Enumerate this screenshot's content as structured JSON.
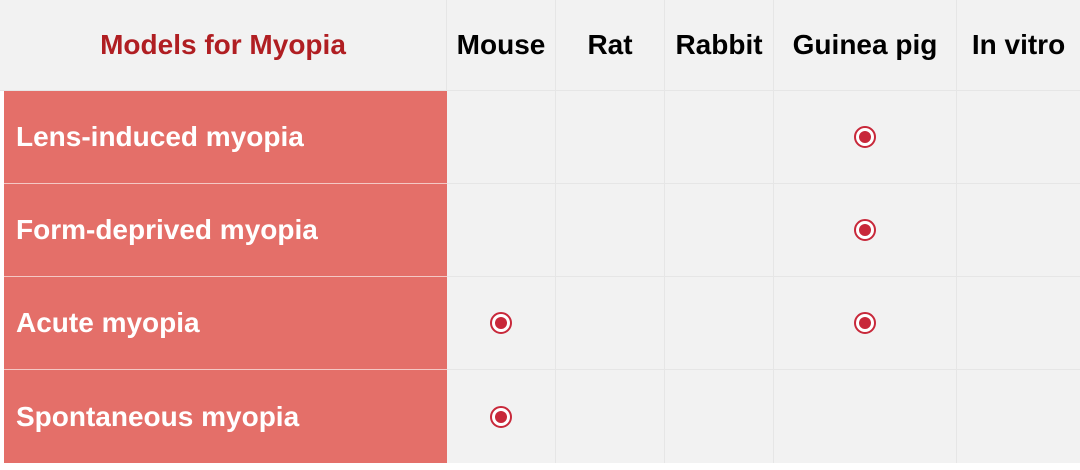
{
  "table": {
    "corner_title": "Models for Myopia",
    "columns": [
      "Mouse",
      "Rat",
      "Rabbit",
      "Guinea pig",
      "In vitro"
    ],
    "rows": [
      {
        "label": "Lens-induced myopia",
        "marks": [
          false,
          false,
          false,
          true,
          false
        ]
      },
      {
        "label": "Form-deprived myopia",
        "marks": [
          false,
          false,
          false,
          true,
          false
        ]
      },
      {
        "label": "Acute myopia",
        "marks": [
          true,
          false,
          false,
          true,
          false
        ]
      },
      {
        "label": "Spontaneous myopia",
        "marks": [
          true,
          false,
          false,
          false,
          false
        ]
      }
    ],
    "mark_icon": "radio-dot-icon",
    "colors": {
      "header_title": "#b01e22",
      "row_header_bg": "#e46f69",
      "row_header_text": "#ffffff",
      "cell_bg": "#f2f2f2",
      "mark": "#c8283a"
    }
  }
}
